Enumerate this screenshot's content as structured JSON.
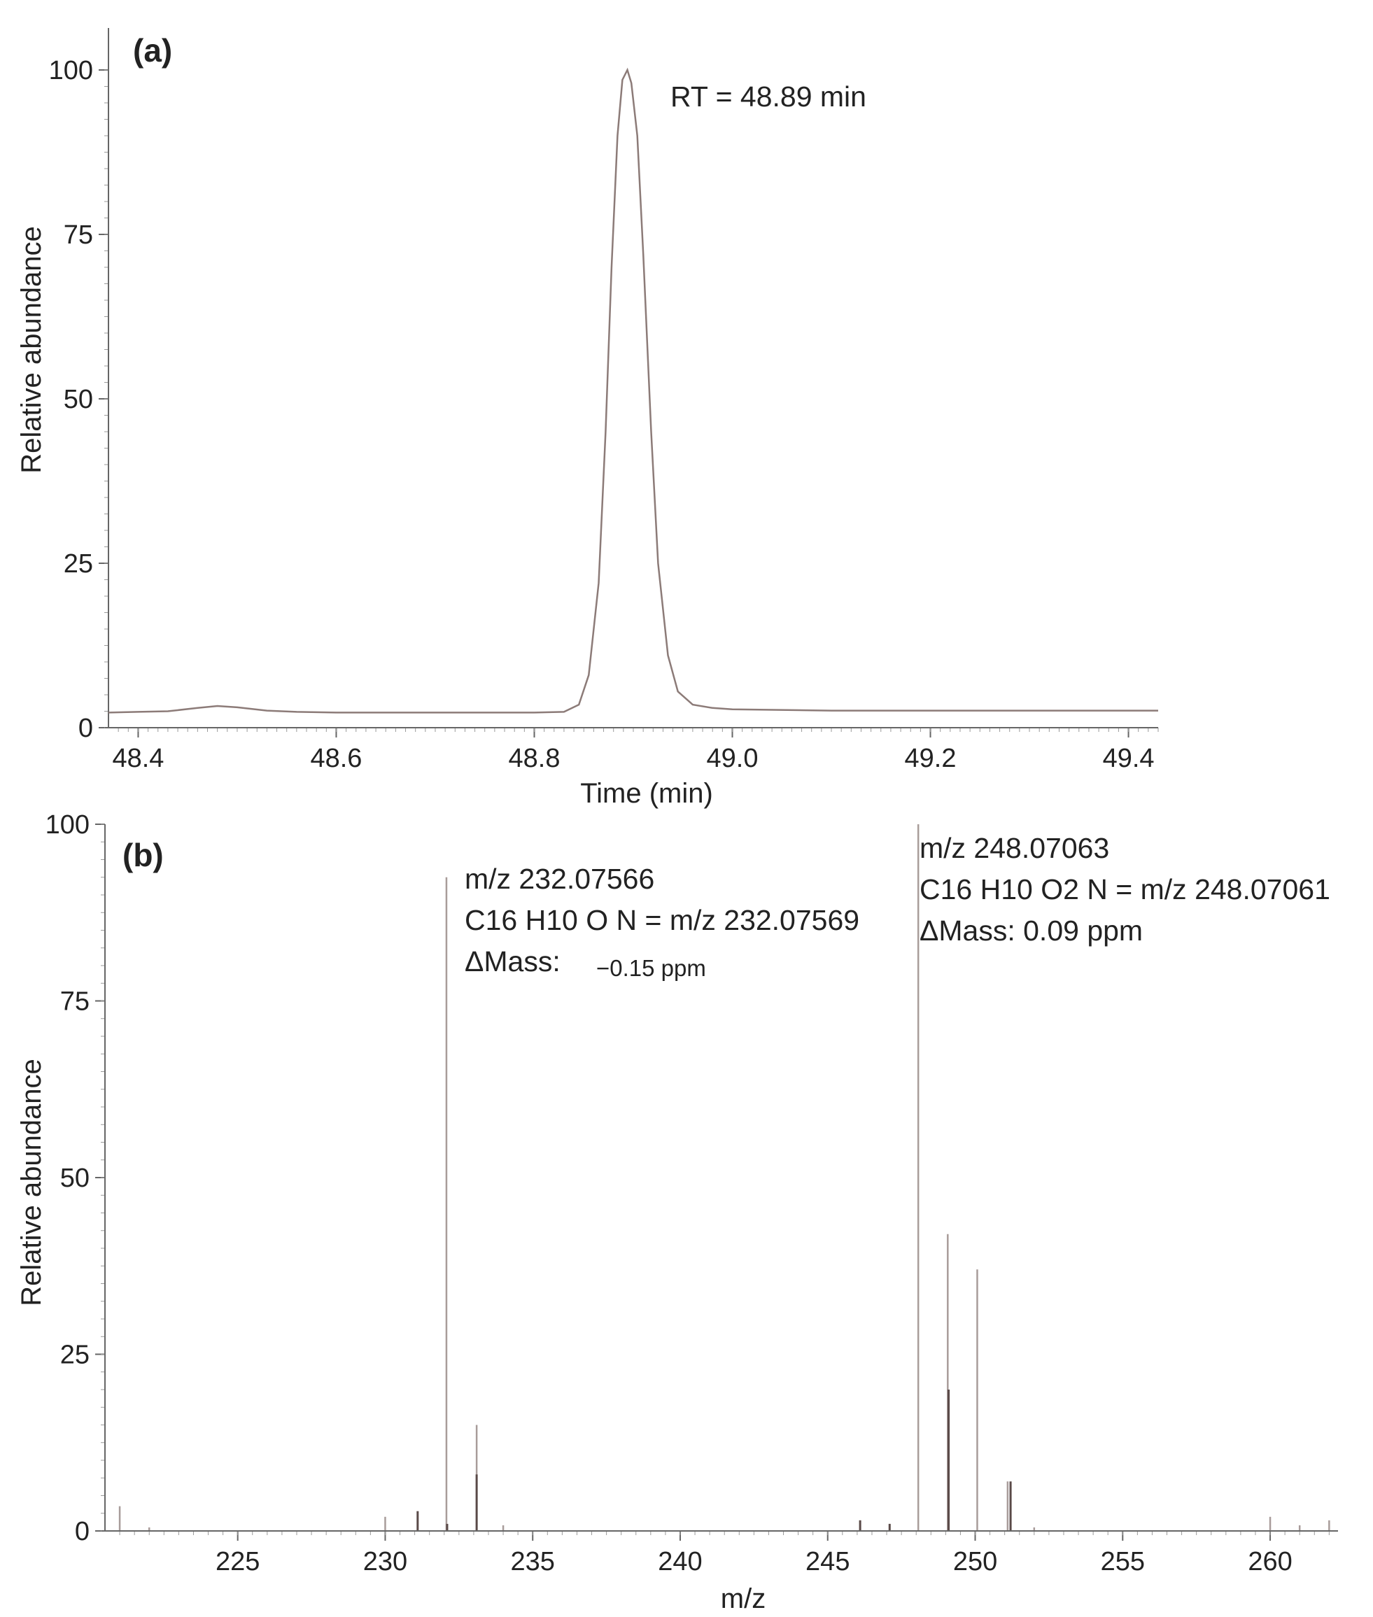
{
  "chart_data": [
    {
      "type": "line",
      "panel_label": "(a)",
      "title": "",
      "xlabel": "Time (min)",
      "ylabel": "Relative abundance",
      "xlim": [
        48.37,
        49.43
      ],
      "ylim": [
        0,
        100
      ],
      "x_ticks": [
        "48.4",
        "48.6",
        "48.8",
        "49.0",
        "49.2",
        "49.4"
      ],
      "y_ticks": [
        "0",
        "25",
        "50",
        "75",
        "100"
      ],
      "grid": false,
      "line_color": "#8c7b78",
      "series": [
        {
          "x": [
            48.37,
            48.4,
            48.43,
            48.46,
            48.48,
            48.5,
            48.53,
            48.56,
            48.6,
            48.7,
            48.8,
            48.83,
            48.845,
            48.855,
            48.865,
            48.872,
            48.878,
            48.884,
            48.889,
            48.894,
            48.898,
            48.904,
            48.91,
            48.918,
            48.925,
            48.935,
            48.945,
            48.96,
            48.98,
            49.0,
            49.1,
            49.2,
            49.3,
            49.43
          ],
          "y": [
            2.3,
            2.4,
            2.5,
            3.0,
            3.3,
            3.1,
            2.6,
            2.4,
            2.3,
            2.3,
            2.3,
            2.4,
            3.5,
            8.0,
            22.0,
            45.0,
            70.0,
            90.0,
            98.5,
            100.0,
            98.0,
            90.0,
            72.0,
            45.0,
            25.0,
            11.0,
            5.5,
            3.5,
            3.0,
            2.8,
            2.6,
            2.6,
            2.6,
            2.6
          ]
        }
      ],
      "annotations": [
        "RT = 48.89 min"
      ]
    },
    {
      "type": "bar",
      "panel_label": "(b)",
      "title": "",
      "xlabel": "m/z",
      "ylabel": "Relative abundance",
      "xlim": [
        220.5,
        262.3
      ],
      "ylim": [
        0,
        100
      ],
      "x_ticks": [
        "225",
        "230",
        "235",
        "240",
        "245",
        "250",
        "255",
        "260"
      ],
      "y_ticks": [
        "0",
        "25",
        "50",
        "75",
        "100"
      ],
      "grid": false,
      "series": [
        {
          "name": "",
          "color": "#a89c9a",
          "x": [
            221.0,
            222.0,
            230.0,
            231.1,
            232.07566,
            233.1,
            234.0,
            246.1,
            247.1,
            248.07063,
            249.07,
            250.07,
            251.1,
            252.0,
            260.0,
            261.0,
            262.0
          ],
          "y": [
            3.5,
            0.5,
            2.0,
            2.5,
            92.5,
            15.0,
            0.8,
            1.5,
            1.0,
            100.0,
            42.0,
            37.0,
            7.0,
            0.5,
            2.0,
            0.8,
            1.5
          ]
        },
        {
          "name": "",
          "color": "#5a4a48",
          "x": [
            231.1,
            232.1,
            233.1,
            246.1,
            247.1,
            249.1,
            251.2
          ],
          "y": [
            2.8,
            1.0,
            8.0,
            1.5,
            1.0,
            20.0,
            7.0
          ]
        }
      ],
      "annotations": [
        {
          "peak": 232.07566,
          "lines": [
            "m/z 232.07566",
            "C16 H10 O N = m/z 232.07569",
            "ΔMass:"
          ],
          "delta": "−0.15 ppm"
        },
        {
          "peak": 248.07063,
          "lines": [
            "m/z 248.07063",
            "C16 H10 O2 N = m/z 248.07061",
            "ΔMass: 0.09 ppm"
          ]
        }
      ]
    }
  ]
}
